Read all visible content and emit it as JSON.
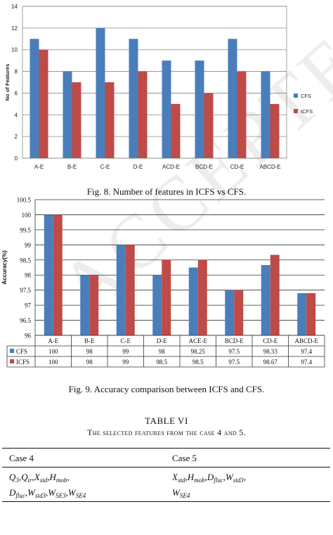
{
  "chart_data": [
    {
      "type": "bar",
      "categories": [
        "A-E",
        "B-E",
        "C-E",
        "D-E",
        "ACD-E",
        "BCD-E",
        "CD-E",
        "ABCD-E"
      ],
      "series": [
        {
          "name": "CFS",
          "values": [
            11,
            8,
            12,
            11,
            9,
            9,
            11,
            8
          ],
          "color": "#4a7ebb"
        },
        {
          "name": "ICFS",
          "values": [
            10,
            7,
            7,
            8,
            5,
            6,
            8,
            5
          ],
          "color": "#be4b48"
        }
      ],
      "ylabel": "No of Features",
      "ylim": [
        0,
        14
      ],
      "yticks": [
        "0",
        "2",
        "4",
        "6",
        "8",
        "10",
        "12",
        "14"
      ],
      "legend_position": "right",
      "grid": true
    },
    {
      "type": "bar",
      "categories": [
        "A-E",
        "B-E",
        "C-E",
        "D-E",
        "ACE-E",
        "BCD-E",
        "CD-E",
        "ABCD-E"
      ],
      "series": [
        {
          "name": "CFS",
          "values": [
            100,
            98,
            99,
            98,
            98.25,
            97.5,
            98.33,
            97.4
          ],
          "labels": [
            "100",
            "98",
            "99",
            "98",
            "98.25",
            "97.5",
            "98.33",
            "97.4"
          ],
          "color": "#4a7ebb"
        },
        {
          "name": "ICFS",
          "values": [
            100,
            98,
            99,
            98.5,
            98.5,
            97.5,
            98.67,
            97.4
          ],
          "labels": [
            "100",
            "98",
            "99",
            "98.5",
            "98.5",
            "97.5",
            "98.67",
            "97.4"
          ],
          "color": "#be4b48"
        }
      ],
      "ylabel": "Accuracy(%)",
      "ylim": [
        96,
        100.5
      ],
      "yticks": [
        "96",
        "96.5",
        "97",
        "97.5",
        "98",
        "98.5",
        "99",
        "99.5",
        "100",
        "100.5"
      ],
      "legend_position": "data-table",
      "grid": true
    }
  ],
  "fig8_caption": "Fig. 8.  Number of features in ICFS vs CFS.",
  "fig9_caption": "Fig. 9.  Accuracy comparison between ICFS and CFS.",
  "table": {
    "title": "TABLE VI",
    "subtitle": "The selected features from the case 4 and 5.",
    "headers": [
      "Case 4",
      "Case 5"
    ]
  },
  "watermark": "ACCEPTED"
}
